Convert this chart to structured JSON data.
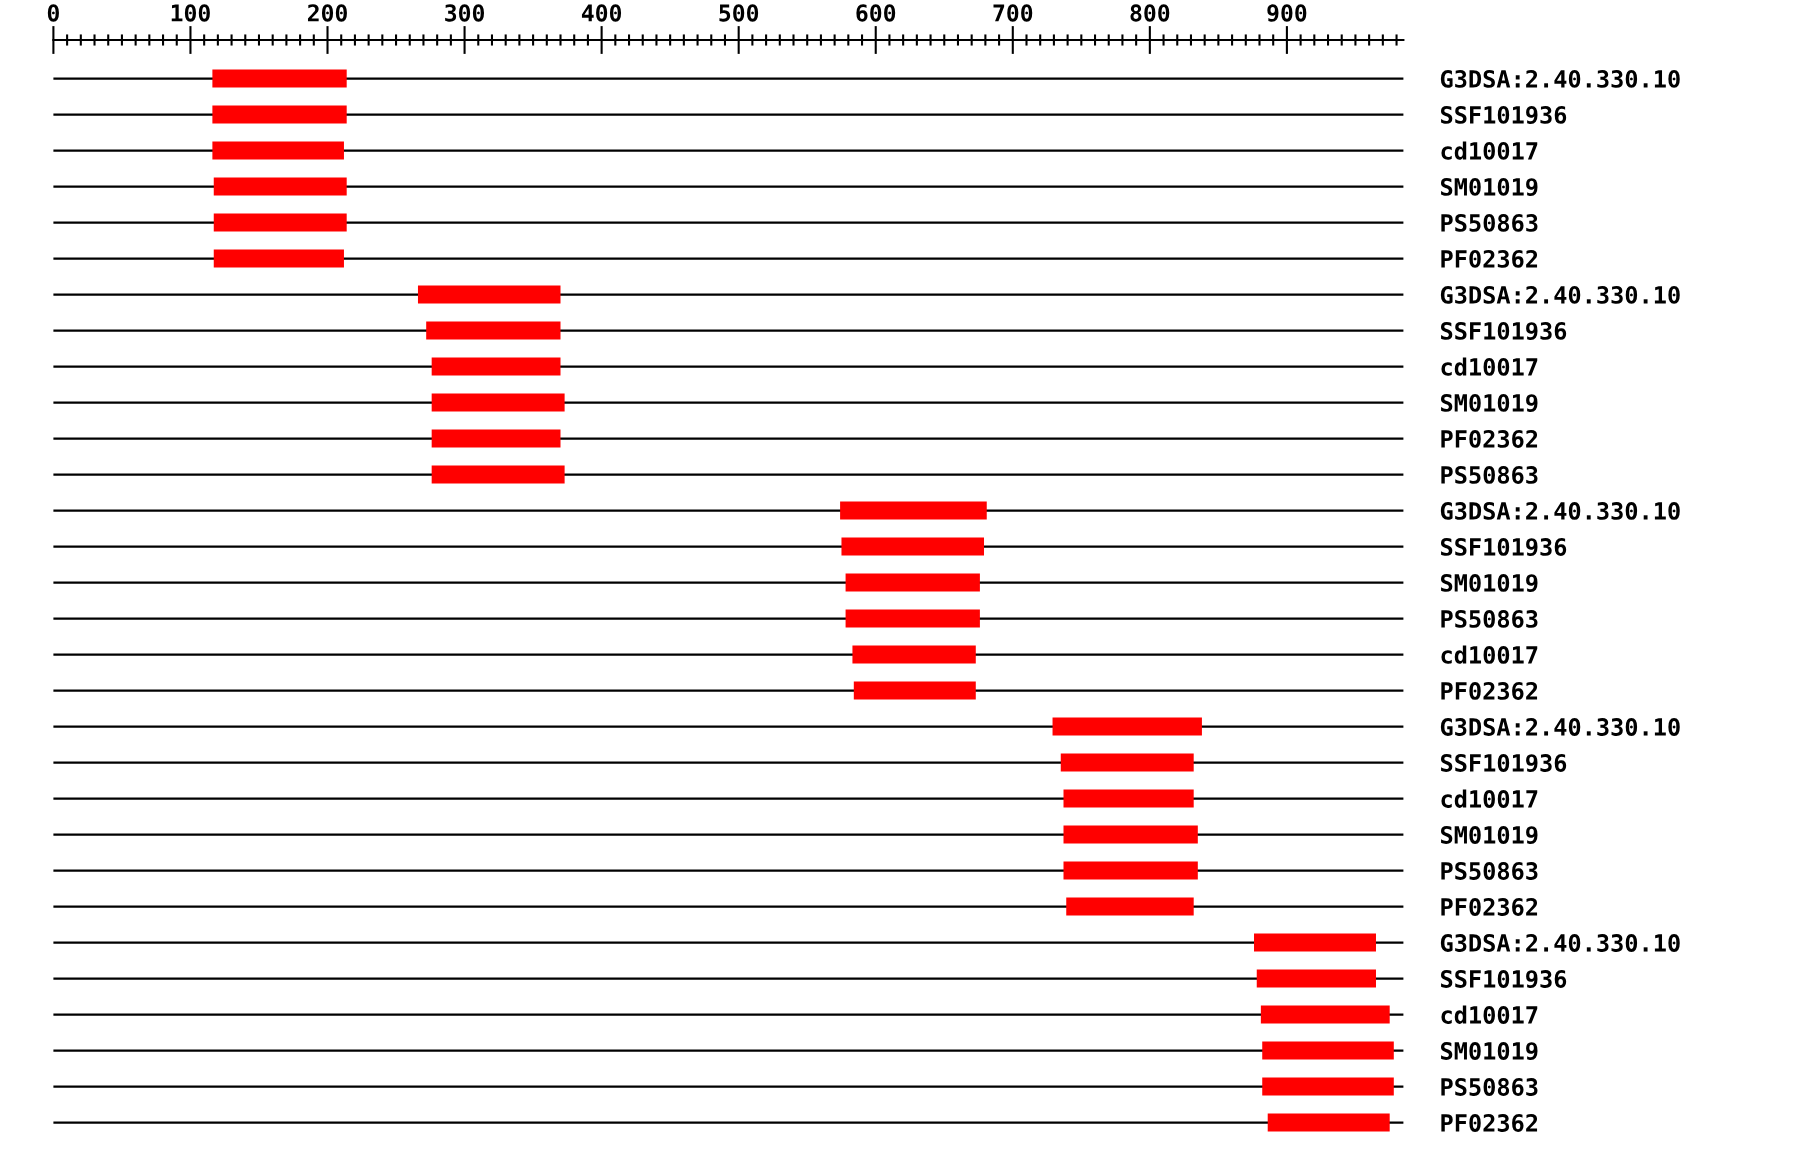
{
  "chart_data": {
    "type": "bar",
    "orientation": "horizontal",
    "categories": [
      "G3DSA:2.40.330.10",
      "SSF101936",
      "cd10017",
      "SM01019",
      "PS50863",
      "PF02362",
      "G3DSA:2.40.330.10",
      "SSF101936",
      "cd10017",
      "SM01019",
      "PF02362",
      "PS50863",
      "G3DSA:2.40.330.10",
      "SSF101936",
      "SM01019",
      "PS50863",
      "cd10017",
      "PF02362",
      "G3DSA:2.40.330.10",
      "SSF101936",
      "cd10017",
      "SM01019",
      "PS50863",
      "PF02362",
      "G3DSA:2.40.330.10",
      "SSF101936",
      "cd10017",
      "SM01019",
      "PS50863",
      "PF02362"
    ],
    "base": [
      116,
      116,
      116,
      117,
      117,
      117,
      266,
      272,
      276,
      276,
      276,
      276,
      574,
      575,
      578,
      578,
      583,
      584,
      729,
      735,
      737,
      737,
      737,
      739,
      876,
      878,
      881,
      882,
      882,
      886
    ],
    "values": [
      98,
      98,
      96,
      97,
      97,
      95,
      104,
      98,
      94,
      97,
      94,
      97,
      107,
      104,
      98,
      98,
      90,
      89,
      109,
      97,
      95,
      98,
      98,
      93,
      89,
      87,
      94,
      96,
      96,
      89
    ],
    "color": "#ff0000",
    "xlim": [
      0,
      985
    ],
    "xticks": [
      0,
      {
        "value": 10,
        "label": null
      },
      {
        "value": 20,
        "label": null
      },
      {
        "value": 30,
        "label": null
      },
      {
        "value": 40,
        "label": null
      },
      {
        "value": 50,
        "label": null
      },
      {
        "value": 60,
        "label": null
      },
      {
        "value": 70,
        "label": null
      },
      {
        "value": 80,
        "label": null
      },
      {
        "value": 90,
        "label": null
      },
      100,
      {
        "value": 110,
        "label": null
      },
      {
        "value": 120,
        "label": null
      },
      {
        "value": 130,
        "label": null
      },
      {
        "value": 140,
        "label": null
      },
      {
        "value": 150,
        "label": null
      },
      {
        "value": 160,
        "label": null
      },
      {
        "value": 170,
        "label": null
      },
      {
        "value": 180,
        "label": null
      },
      {
        "value": 190,
        "label": null
      },
      200,
      {
        "value": 210,
        "label": null
      },
      {
        "value": 220,
        "label": null
      },
      {
        "value": 230,
        "label": null
      },
      {
        "value": 240,
        "label": null
      },
      {
        "value": 250,
        "label": null
      },
      {
        "value": 260,
        "label": null
      },
      {
        "value": 270,
        "label": null
      },
      {
        "value": 280,
        "label": null
      },
      {
        "value": 290,
        "label": null
      },
      300,
      {
        "value": 310,
        "label": null
      },
      {
        "value": 320,
        "label": null
      },
      {
        "value": 330,
        "label": null
      },
      {
        "value": 340,
        "label": null
      },
      {
        "value": 350,
        "label": null
      },
      {
        "value": 360,
        "label": null
      },
      {
        "value": 370,
        "label": null
      },
      {
        "value": 380,
        "label": null
      },
      {
        "value": 390,
        "label": null
      },
      400,
      {
        "value": 410,
        "label": null
      },
      {
        "value": 420,
        "label": null
      },
      {
        "value": 430,
        "label": null
      },
      {
        "value": 440,
        "label": null
      },
      {
        "value": 450,
        "label": null
      },
      {
        "value": 460,
        "label": null
      },
      {
        "value": 470,
        "label": null
      },
      {
        "value": 480,
        "label": null
      },
      {
        "value": 490,
        "label": null
      },
      500,
      {
        "value": 510,
        "label": null
      },
      {
        "value": 520,
        "label": null
      },
      {
        "value": 530,
        "label": null
      },
      {
        "value": 540,
        "label": null
      },
      {
        "value": 550,
        "label": null
      },
      {
        "value": 560,
        "label": null
      },
      {
        "value": 570,
        "label": null
      },
      {
        "value": 580,
        "label": null
      },
      {
        "value": 590,
        "label": null
      },
      600,
      {
        "value": 610,
        "label": null
      },
      {
        "value": 620,
        "label": null
      },
      {
        "value": 630,
        "label": null
      },
      {
        "value": 640,
        "label": null
      },
      {
        "value": 650,
        "label": null
      },
      {
        "value": 660,
        "label": null
      },
      {
        "value": 670,
        "label": null
      },
      {
        "value": 680,
        "label": null
      },
      {
        "value": 690,
        "label": null
      },
      700,
      {
        "value": 710,
        "label": null
      },
      {
        "value": 720,
        "label": null
      },
      {
        "value": 730,
        "label": null
      },
      {
        "value": 740,
        "label": null
      },
      {
        "value": 750,
        "label": null
      },
      {
        "value": 760,
        "label": null
      },
      {
        "value": 770,
        "label": null
      },
      {
        "value": 780,
        "label": null
      },
      {
        "value": 790,
        "label": null
      },
      800,
      {
        "value": 810,
        "label": null
      },
      {
        "value": 820,
        "label": null
      },
      {
        "value": 830,
        "label": null
      },
      {
        "value": 840,
        "label": null
      },
      {
        "value": 850,
        "label": null
      },
      {
        "value": 860,
        "label": null
      },
      {
        "value": 870,
        "label": null
      },
      {
        "value": 880,
        "label": null
      },
      {
        "value": 890,
        "label": null
      },
      900,
      {
        "value": 910,
        "label": null
      },
      {
        "value": 920,
        "label": null
      },
      {
        "value": 930,
        "label": null
      },
      {
        "value": 940,
        "label": null
      },
      {
        "value": 950,
        "label": null
      },
      {
        "value": 960,
        "label": null
      },
      {
        "value": 970,
        "label": null
      },
      {
        "value": 980,
        "label": null
      }
    ],
    "grid": "y"
  }
}
